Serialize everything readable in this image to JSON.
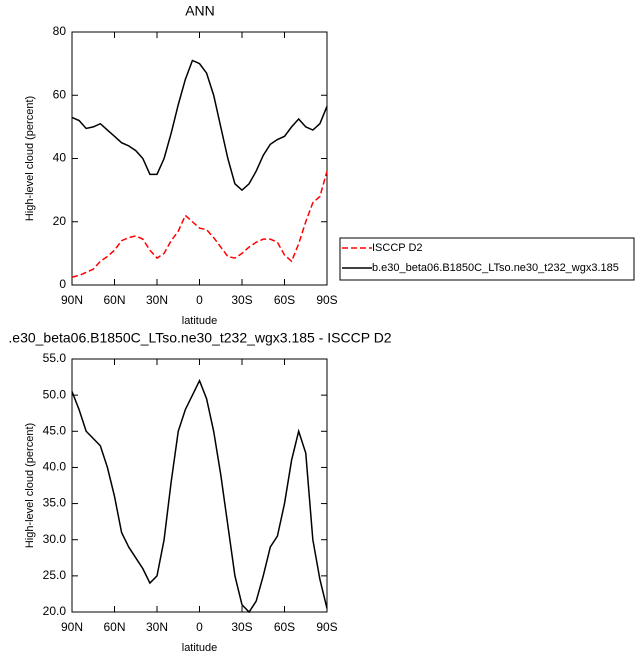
{
  "chart_data": [
    {
      "type": "line",
      "title": "ANN",
      "x_label": "latitude",
      "y_label": "High-level cloud (percent)",
      "x": [
        90,
        85,
        80,
        75,
        70,
        65,
        60,
        55,
        50,
        45,
        40,
        35,
        30,
        25,
        20,
        15,
        10,
        5,
        0,
        -5,
        -10,
        -15,
        -20,
        -25,
        -30,
        -35,
        -40,
        -45,
        -50,
        -55,
        -60,
        -65,
        -70,
        -75,
        -80,
        -85,
        -90
      ],
      "xlim": [
        90,
        -90
      ],
      "xticks": [
        {
          "value": 90,
          "label": "90N"
        },
        {
          "value": 60,
          "label": "60N"
        },
        {
          "value": 30,
          "label": "30N"
        },
        0,
        {
          "value": -30,
          "label": "30S"
        },
        {
          "value": -60,
          "label": "60S"
        },
        {
          "value": -90,
          "label": "90S"
        }
      ],
      "ylim": [
        0,
        80
      ],
      "yticks": [
        0,
        20,
        40,
        60,
        80
      ],
      "series": [
        {
          "name": "ISCCP D2",
          "color": "#ff0000",
          "style": "dashed",
          "values": [
            2.5,
            3,
            4,
            5,
            7.5,
            9,
            11,
            14,
            15,
            15.5,
            14.5,
            11,
            8.5,
            10,
            14,
            17,
            22,
            20,
            18,
            17.5,
            15,
            12,
            9,
            8.5,
            10,
            12,
            13.5,
            14.5,
            14.5,
            13.5,
            9.5,
            7.5,
            13,
            20,
            26,
            28,
            36
          ]
        },
        {
          "name": "b.e30_beta06.B1850C_LTso.ne30_t232_wgx3.185",
          "color": "#000000",
          "style": "solid",
          "values": [
            53,
            52,
            49.5,
            50,
            51,
            49,
            47,
            45,
            44,
            42.5,
            40,
            35,
            35,
            40,
            48,
            57,
            65,
            71,
            70,
            67,
            60,
            50,
            40,
            32,
            30,
            32,
            36,
            41,
            44.5,
            46,
            47,
            50,
            52.5,
            50,
            49,
            51,
            56.5
          ]
        }
      ]
    },
    {
      "type": "line",
      "title": ".e30_beta06.B1850C_LTso.ne30_t232_wgx3.185 - ISCCP D2",
      "x_label": "latitude",
      "y_label": "High-level cloud (percent)",
      "x": [
        90,
        85,
        80,
        75,
        70,
        65,
        60,
        55,
        50,
        45,
        40,
        35,
        30,
        25,
        20,
        15,
        10,
        5,
        0,
        -5,
        -10,
        -15,
        -20,
        -25,
        -30,
        -35,
        -40,
        -45,
        -50,
        -55,
        -60,
        -65,
        -70,
        -75,
        -80,
        -85,
        -90
      ],
      "xlim": [
        90,
        -90
      ],
      "xticks": [
        {
          "value": 90,
          "label": "90N"
        },
        {
          "value": 60,
          "label": "60N"
        },
        {
          "value": 30,
          "label": "30N"
        },
        0,
        {
          "value": -30,
          "label": "30S"
        },
        {
          "value": -60,
          "label": "60S"
        },
        {
          "value": -90,
          "label": "90S"
        }
      ],
      "ylim": [
        20,
        55
      ],
      "yticks": [
        {
          "value": 20,
          "label": "20.0"
        },
        {
          "value": 25,
          "label": "25.0"
        },
        {
          "value": 30,
          "label": "30.0"
        },
        {
          "value": 35,
          "label": "35.0"
        },
        {
          "value": 40,
          "label": "40.0"
        },
        {
          "value": 45,
          "label": "45.0"
        },
        {
          "value": 50,
          "label": "50.0"
        },
        {
          "value": 55,
          "label": "55.0"
        }
      ],
      "series": [
        {
          "color": "#000000",
          "style": "solid",
          "values": [
            50.5,
            48,
            45,
            44,
            43,
            40,
            36,
            31,
            29,
            27.5,
            26,
            24,
            25,
            30,
            38,
            45,
            48,
            50,
            52,
            49.5,
            45,
            39,
            32,
            25,
            21,
            20,
            21.5,
            25,
            29,
            30.5,
            35,
            41,
            45,
            42,
            30,
            24.5,
            20.5
          ]
        }
      ]
    }
  ]
}
